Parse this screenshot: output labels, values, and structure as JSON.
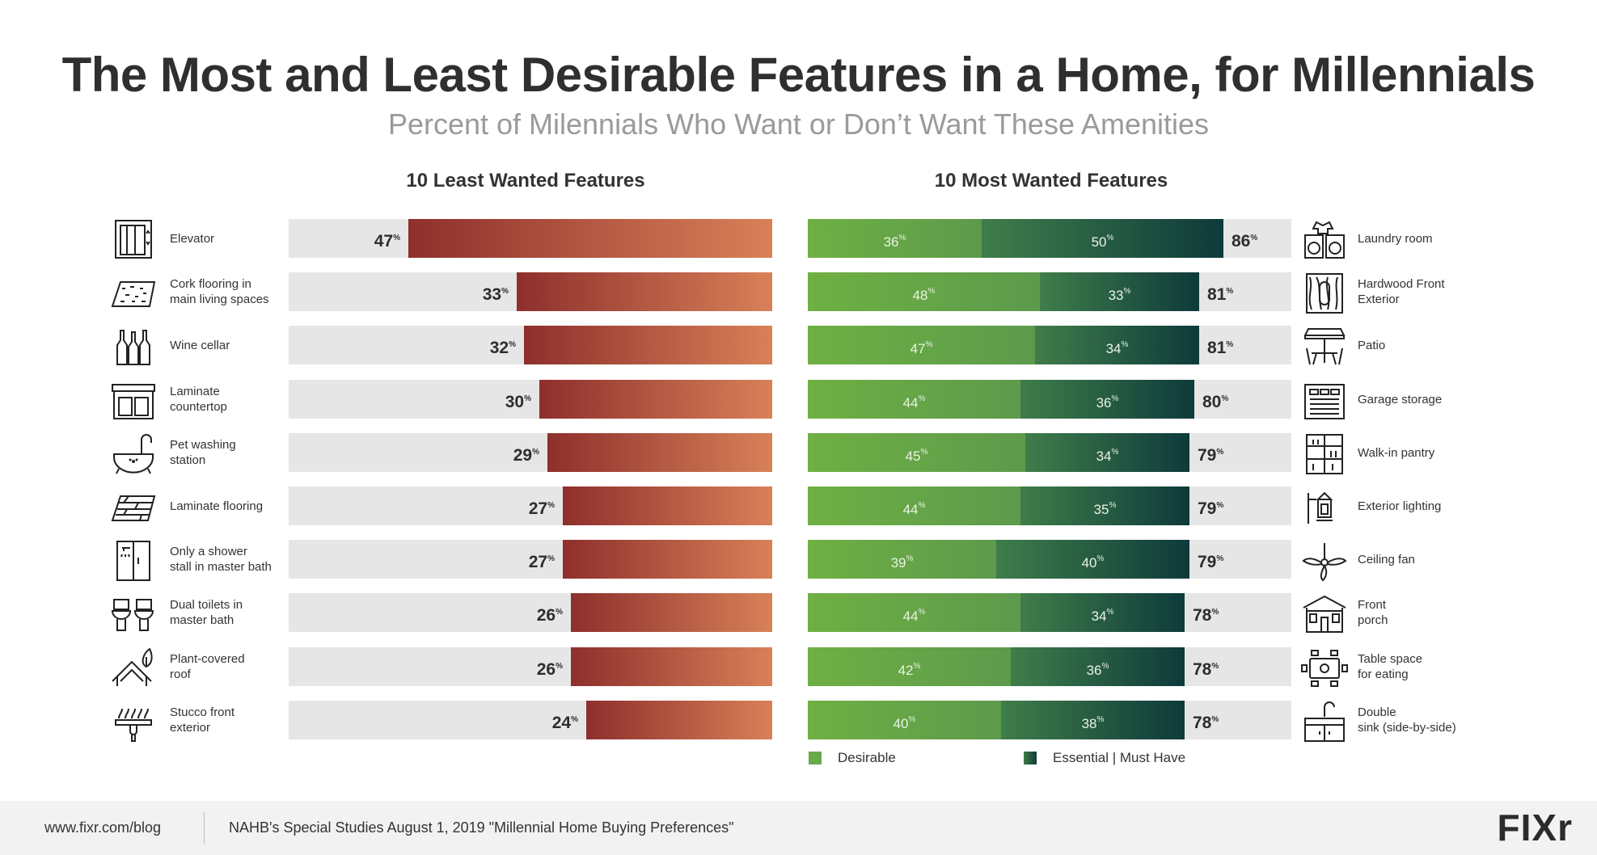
{
  "title": "The Most and Least Desirable Features in a Home, for Millennials",
  "subtitle": "Percent of Milennials Who Want or Don’t Want These Amenities",
  "percent_symbol": "%",
  "colors": {
    "least_start": "#8e2f2c",
    "least_end": "#d88158",
    "desirable": "#6aa94a",
    "essential": "#1f5a42",
    "track": "#e6e6e6"
  },
  "chart_data": [
    {
      "type": "bar",
      "title": "10 Least Wanted Features",
      "orientation": "horizontal",
      "xlim": [
        0,
        100
      ],
      "categories": [
        "Elevator",
        "Cork flooring in\nmain living spaces",
        "Wine cellar",
        "Laminate\ncountertop",
        "Pet washing\nstation",
        "Laminate  flooring",
        "Only a shower\nstall in master bath",
        "Dual toilets in\nmaster bath",
        "Plant-covered\nroof",
        "Stucco front\nexterior"
      ],
      "icons": [
        "elevator-icon",
        "cork-flooring-icon",
        "wine-cellar-icon",
        "laminate-countertop-icon",
        "pet-washing-icon",
        "laminate-flooring-icon",
        "shower-stall-icon",
        "dual-toilets-icon",
        "plant-roof-icon",
        "stucco-icon"
      ],
      "values": [
        47,
        33,
        32,
        30,
        29,
        27,
        27,
        26,
        26,
        24
      ]
    },
    {
      "type": "bar",
      "title": "10 Most Wanted Features",
      "orientation": "horizontal",
      "stacked": true,
      "xlim": [
        0,
        100
      ],
      "categories": [
        "Laundry room",
        "Hardwood Front\nExterior",
        "Patio",
        "Garage storage",
        "Walk-in pantry",
        "Exterior lighting",
        "Ceiling fan",
        "Front\nporch",
        "Table space\nfor eating",
        "Double\nsink (side-by-side)"
      ],
      "icons": [
        "laundry-icon",
        "hardwood-door-icon",
        "patio-icon",
        "garage-icon",
        "pantry-icon",
        "exterior-light-icon",
        "ceiling-fan-icon",
        "front-porch-icon",
        "dining-table-icon",
        "double-sink-icon"
      ],
      "series": [
        {
          "name": "Desirable",
          "values": [
            36,
            48,
            47,
            44,
            45,
            44,
            39,
            44,
            42,
            40
          ]
        },
        {
          "name": "Essential | Must Have",
          "values": [
            50,
            33,
            34,
            36,
            34,
            35,
            40,
            34,
            36,
            38
          ]
        }
      ],
      "totals": [
        86,
        81,
        81,
        80,
        79,
        79,
        79,
        78,
        78,
        78
      ]
    }
  ],
  "footer": {
    "website": "www.fixr.com/blog",
    "source": "NAHB's Special Studies August 1, 2019 \"Millennial Home Buying Preferences\"",
    "logo": "FIXr"
  }
}
